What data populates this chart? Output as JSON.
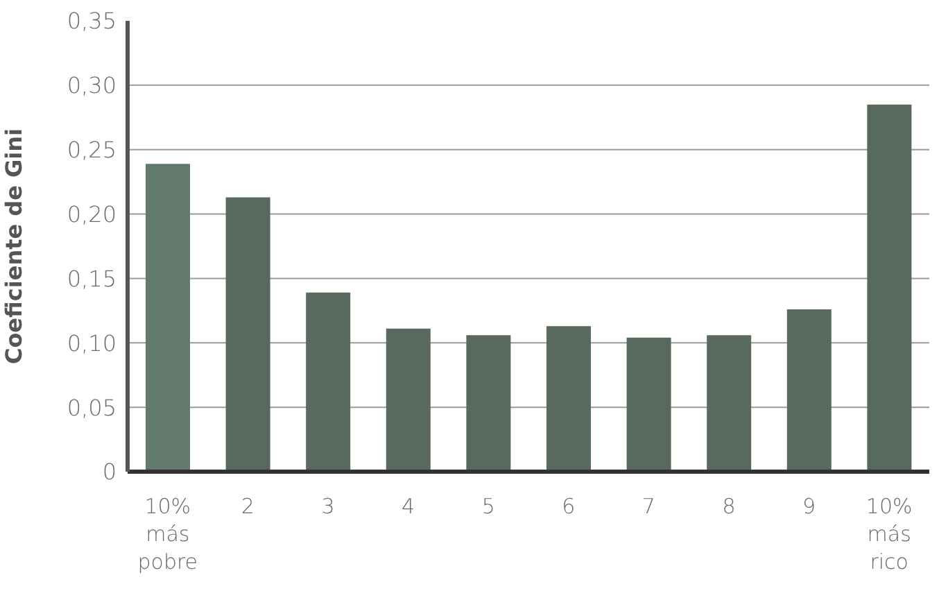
{
  "chart_data": {
    "type": "bar",
    "ylabel": "Coeficiente de Gini",
    "categories": [
      "10%\nmás\npobre",
      "2",
      "3",
      "4",
      "5",
      "6",
      "7",
      "8",
      "9",
      "10%\nmás\nrico"
    ],
    "values": [
      0.239,
      0.213,
      0.139,
      0.111,
      0.106,
      0.113,
      0.104,
      0.106,
      0.126,
      0.285
    ],
    "colors": [
      "#627a6c",
      "#58695e",
      "#58695e",
      "#58695e",
      "#58695e",
      "#58695e",
      "#58695e",
      "#58695e",
      "#58695e",
      "#58695e"
    ],
    "ylim": [
      0,
      0.35
    ],
    "yticks": [
      0,
      {
        "value": 0.05,
        "label": "0,05"
      },
      {
        "value": 0.1,
        "label": "0,10"
      },
      {
        "value": 0.15,
        "label": "0,15"
      },
      {
        "value": 0.2,
        "label": "0,20"
      },
      {
        "value": 0.25,
        "label": "0,25"
      },
      {
        "value": 0.3,
        "label": "0,30"
      },
      {
        "value": 0.35,
        "label": "0,35"
      }
    ],
    "grid": "y"
  }
}
